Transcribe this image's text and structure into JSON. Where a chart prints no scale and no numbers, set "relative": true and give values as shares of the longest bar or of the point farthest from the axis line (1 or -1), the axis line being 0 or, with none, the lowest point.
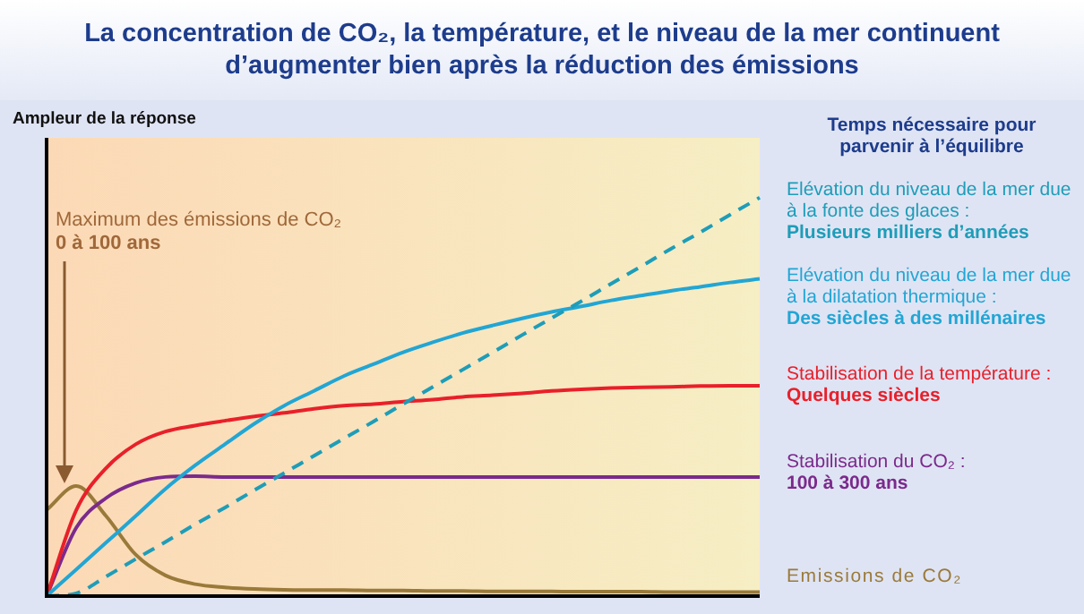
{
  "chart_data": {
    "type": "line",
    "relative": true,
    "title": "La concentration de CO₂, la température, et le niveau de la mer continuent d’augmenter bien après la réduction des émissions",
    "ylabel": "Ampleur de la réponse",
    "legend_title": "Temps nécessaire pour parvenir à l’équilibre",
    "legend": "right",
    "annotations": [
      "Maximum des émissions de CO₂\n0 à 100 ans"
    ],
    "categories": [
      null,
      null,
      null,
      null,
      null,
      null,
      null,
      null,
      null,
      null,
      null,
      null,
      null,
      null,
      null,
      null,
      null,
      null,
      null,
      null,
      null,
      null,
      null,
      null,
      null
    ],
    "series": [
      {
        "name": "Elévation du niveau de la mer due à la fonte des glaces :\nPlusieurs milliers d’années",
        "color": "#1e9db8",
        "line_style": "dashed",
        "values": [
          0,
          0.007,
          0.049,
          0.093,
          0.136,
          0.18,
          0.222,
          0.266,
          0.309,
          0.352,
          0.395,
          0.438,
          0.482,
          0.525,
          0.568,
          0.611,
          0.655,
          0.698,
          0.74,
          0.784,
          0.827,
          0.871,
          0.913,
          0.957,
          1
        ]
      },
      {
        "name": "Elévation du niveau de la mer due à la dilatation thermique :\nDes siècles à des millénaires",
        "color": "#22a6d4",
        "values": [
          0,
          0.067,
          0.134,
          0.201,
          0.269,
          0.328,
          0.381,
          0.433,
          0.478,
          0.515,
          0.552,
          0.582,
          0.612,
          0.637,
          0.66,
          0.679,
          0.697,
          0.713,
          0.727,
          0.742,
          0.754,
          0.766,
          0.776,
          0.787,
          0.796
        ]
      },
      {
        "name": "Stabilisation de la température :\nQuelques siècles",
        "color": "#e8202a",
        "values": [
          0,
          0.216,
          0.321,
          0.381,
          0.413,
          0.428,
          0.44,
          0.451,
          0.46,
          0.47,
          0.478,
          0.482,
          0.488,
          0.493,
          0.5,
          0.504,
          0.509,
          0.515,
          0.519,
          0.522,
          0.524,
          0.525,
          0.527,
          0.528,
          0.528
        ]
      },
      {
        "name": "Stabilisation du CO₂ :\n100 à 300 ans",
        "color": "#7b2a8c",
        "values": [
          0,
          0.172,
          0.246,
          0.284,
          0.299,
          0.301,
          0.299,
          0.299,
          0.299,
          0.299,
          0.299,
          0.299,
          0.299,
          0.299,
          0.299,
          0.299,
          0.299,
          0.299,
          0.299,
          0.299,
          0.299,
          0.299,
          0.299,
          0.299,
          0.299
        ]
      },
      {
        "name": "Emissions de CO₂",
        "color": "#9a7a3a",
        "values": [
          0.216,
          0.276,
          0.201,
          0.104,
          0.052,
          0.03,
          0.022,
          0.018,
          0.016,
          0.015,
          0.015,
          0.014,
          0.014,
          0.013,
          0.013,
          0.012,
          0.012,
          0.012,
          0.011,
          0.011,
          0.011,
          0.01,
          0.01,
          0.01,
          0.01
        ]
      }
    ]
  }
}
